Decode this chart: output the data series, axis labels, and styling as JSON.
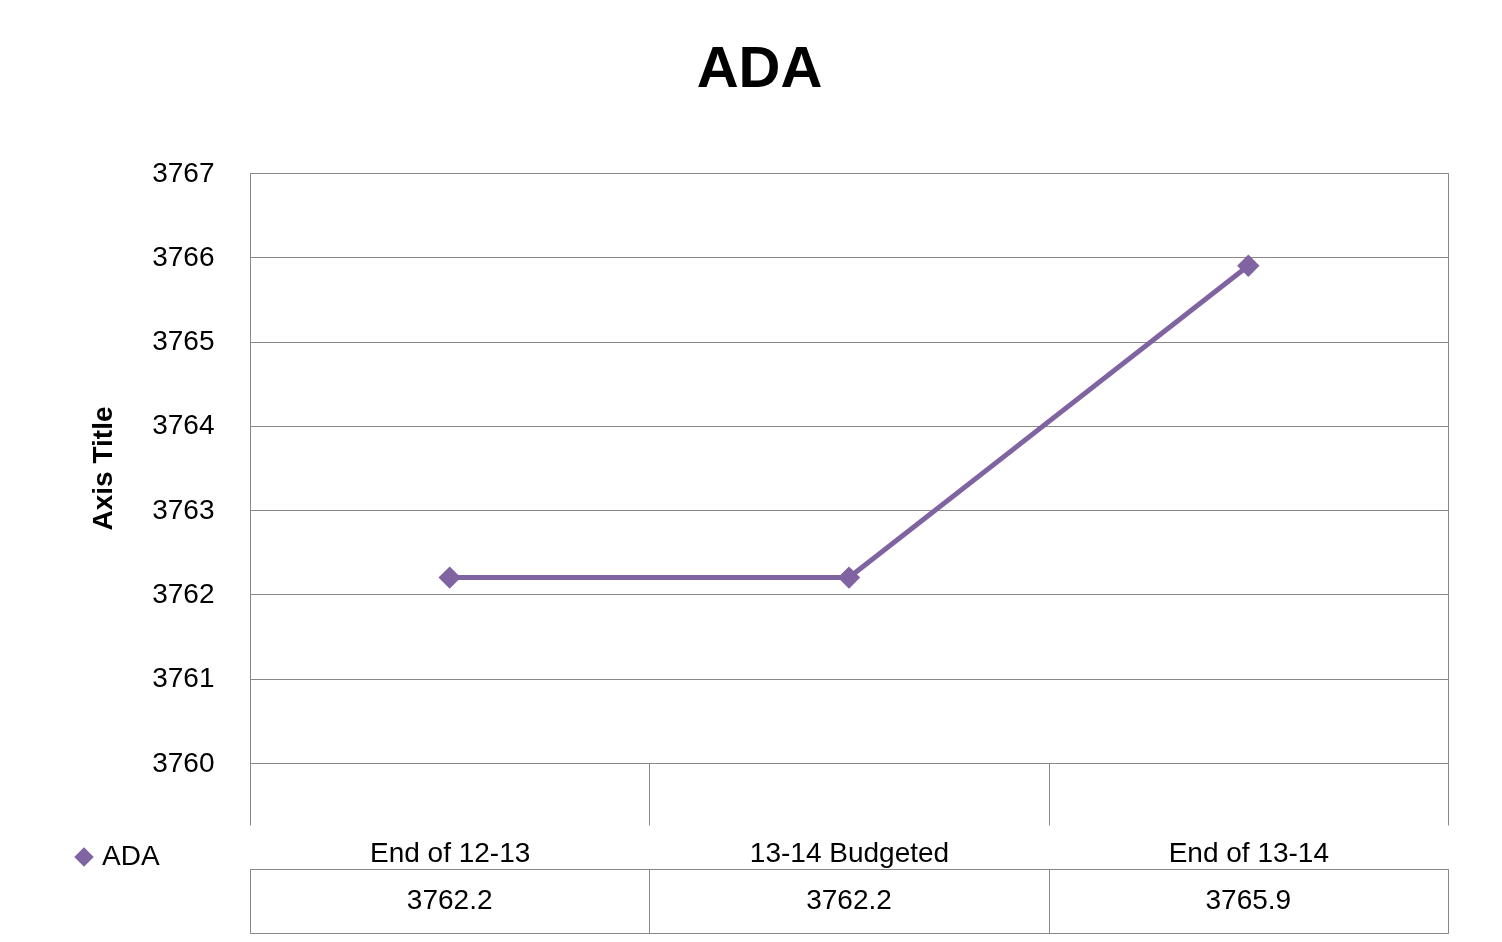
{
  "chart_data": {
    "type": "line",
    "title": "ADA",
    "ylabel": "Axis Title",
    "categories": [
      "End of 12-13",
      "13-14 Budgeted",
      "End of 13-14"
    ],
    "series": [
      {
        "name": "ADA",
        "color": "#8064a2",
        "values": [
          3762.2,
          3762.2,
          3765.9
        ]
      }
    ],
    "ylim": [
      3760,
      3767
    ],
    "yticks": [
      3760,
      3761,
      3762,
      3763,
      3764,
      3765,
      3766,
      3767
    ],
    "grid": "y",
    "marker": "diamond",
    "line_style": "solid",
    "data_labels": true,
    "legend": "bottom"
  }
}
